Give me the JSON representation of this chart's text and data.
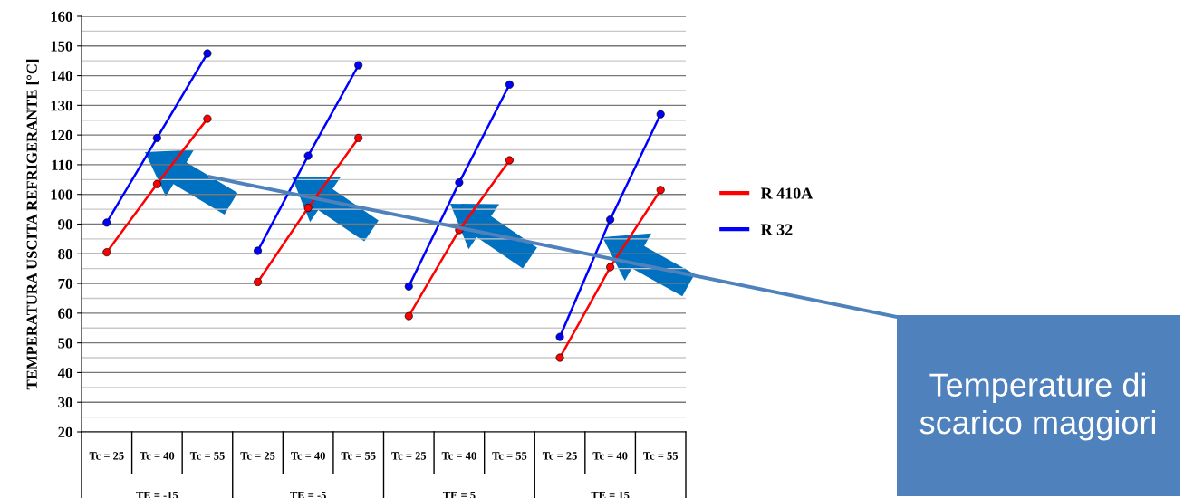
{
  "chart_data": {
    "type": "line",
    "ylabel": "TEMPERATURA USCITA REFRIGERANTE [°C]",
    "categories": [
      "Tc = 25",
      "Tc = 40",
      "Tc = 55",
      "Tc = 25",
      "Tc = 40",
      "Tc = 55",
      "Tc = 25",
      "Tc = 40",
      "Tc = 55",
      "Tc = 25",
      "Tc = 40",
      "Tc = 55"
    ],
    "series": [
      {
        "name": "R 410A",
        "color": "#ff0000",
        "values": [
          80.5,
          103.5,
          125.5,
          null,
          null,
          null,
          null,
          null,
          null,
          null,
          null,
          null
        ]
      },
      {
        "color": "#ff0000",
        "values": [
          null,
          null,
          null,
          70.5,
          95.5,
          119,
          null,
          null,
          null,
          null,
          null,
          null
        ]
      },
      {
        "color": "#ff0000",
        "values": [
          null,
          null,
          null,
          null,
          null,
          null,
          59,
          88,
          111.5,
          null,
          null,
          null
        ]
      },
      {
        "color": "#ff0000",
        "values": [
          null,
          null,
          null,
          null,
          null,
          null,
          null,
          null,
          null,
          45,
          75.5,
          101.5
        ]
      },
      {
        "name": "R 32",
        "color": "#0000ff",
        "values": [
          90.5,
          119,
          147.5,
          null,
          null,
          null,
          null,
          null,
          null,
          null,
          null,
          null
        ]
      },
      {
        "color": "#0000ff",
        "values": [
          null,
          null,
          null,
          81,
          113,
          143.5,
          null,
          null,
          null,
          null,
          null,
          null
        ]
      },
      {
        "color": "#0000ff",
        "values": [
          null,
          null,
          null,
          null,
          null,
          null,
          69,
          104,
          137,
          null,
          null,
          null
        ]
      },
      {
        "color": "#0000ff",
        "values": [
          null,
          null,
          null,
          null,
          null,
          null,
          null,
          null,
          null,
          52,
          91.5,
          127
        ]
      }
    ],
    "ylim": [
      20,
      160
    ],
    "yticks": [
      20,
      30,
      40,
      50,
      60,
      70,
      80,
      90,
      100,
      110,
      120,
      130,
      140,
      150,
      160
    ],
    "grid": "y",
    "legend": "right",
    "marker": "circle",
    "line_style": "solid",
    "annotations": [
      "TE = -15",
      "TE = -5",
      "TE = 5",
      "TE = 15",
      "Temperature di scarico maggiori"
    ]
  }
}
